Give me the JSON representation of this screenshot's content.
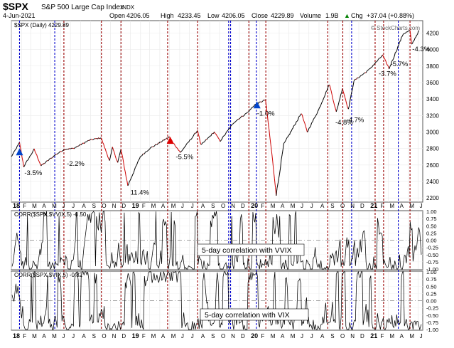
{
  "header": {
    "symbol": "$SPX",
    "name": "S&P 500 Large Cap Index",
    "exchange": "INDX",
    "date": "4-Jun-2021",
    "open_label": "Open",
    "open": "4206.05",
    "high_label": "High",
    "high": "4233.45",
    "low_label": "Low",
    "low": "4206.05",
    "close_label": "Close",
    "close": "4229.89",
    "volume_label": "Volume",
    "volume": "1.9B",
    "chg_label": "Chg",
    "chg": "+37.04 (+0.88%)",
    "chg_arrow": "▲",
    "watermark": "© StockCharts.com",
    "legend": "$SPX (Daily) 4229.89"
  },
  "panel2_legend": "CORR($SPX,$VVIX,5) -0.50",
  "panel3_legend": "CORR($SPX,$VIX,5) -0.82",
  "colors": {
    "price": "#000000",
    "down": "#cc0000",
    "red_line": "#990000",
    "blue_line": "#0000cc",
    "marker_red": "#dd0000",
    "marker_blue": "#0044cc",
    "line_gray": "#888888"
  },
  "chart_data": [
    {
      "type": "line",
      "series": [
        {
          "name": "$SPX (Daily)",
          "x": [
            "2018-01-01",
            "2018-01-26",
            "2018-02-08",
            "2018-03-12",
            "2018-04-02",
            "2018-05-15",
            "2018-06-12",
            "2018-07-10",
            "2018-08-28",
            "2018-10-03",
            "2018-10-29",
            "2018-11-07",
            "2018-11-23",
            "2018-12-03",
            "2018-12-24",
            "2019-01-31",
            "2019-03-01",
            "2019-04-30",
            "2019-06-03",
            "2019-07-26",
            "2019-08-05",
            "2019-09-15",
            "2019-10-03",
            "2019-11-15",
            "2019-12-27",
            "2020-01-17",
            "2020-02-19",
            "2020-03-09",
            "2020-03-23",
            "2020-04-15",
            "2020-06-08",
            "2020-06-26",
            "2020-07-31",
            "2020-09-02",
            "2020-09-23",
            "2020-10-12",
            "2020-10-30",
            "2020-11-16",
            "2020-12-31",
            "2021-02-12",
            "2021-03-04",
            "2021-04-16",
            "2021-05-07",
            "2021-05-12",
            "2021-06-04"
          ],
          "values": [
            2700,
            2870,
            2580,
            2790,
            2590,
            2720,
            2790,
            2800,
            2900,
            2930,
            2650,
            2810,
            2630,
            2790,
            2350,
            2700,
            2800,
            2940,
            2750,
            3020,
            2840,
            3000,
            2890,
            3120,
            3240,
            3330,
            3390,
            2750,
            2240,
            2850,
            3230,
            3000,
            3270,
            3580,
            3240,
            3530,
            3270,
            3620,
            3750,
            3930,
            3770,
            4190,
            4230,
            4060,
            4230
          ]
        }
      ],
      "ylim": [
        2150,
        4350
      ],
      "y_ticks": [
        "4200",
        "4000",
        "3800",
        "3600",
        "3400",
        "3200",
        "3000",
        "2800",
        "2600",
        "2400",
        "2200"
      ],
      "x_ticks": [
        "18",
        "F",
        "M",
        "A",
        "M",
        "J",
        "J",
        "A",
        "S",
        "O",
        "N",
        "D",
        "19",
        "F",
        "M",
        "A",
        "M",
        "J",
        "J",
        "A",
        "S",
        "O",
        "N",
        "D",
        "20",
        "F",
        "M",
        "A",
        "M",
        "J",
        "J",
        "A",
        "S",
        "O",
        "N",
        "D",
        "21",
        "F",
        "M",
        "A",
        "M",
        "J"
      ],
      "annotations": [
        {
          "text": "-3.5%",
          "x": "2018-02-10",
          "y": 2480
        },
        {
          "text": "-2.2%",
          "x": "2018-06-20",
          "y": 2590
        },
        {
          "text": "11.4%",
          "x": "2019-01-01",
          "y": 2240
        },
        {
          "text": "-5.5%",
          "x": "2019-05-20",
          "y": 2670
        },
        {
          "text": "-1.0%",
          "x": "2020-01-24",
          "y": 3200
        },
        {
          "text": "-4.8%",
          "x": "2020-09-20",
          "y": 3090
        },
        {
          "text": "-4.7%",
          "x": "2020-10-24",
          "y": 3120
        },
        {
          "text": "-3.7%",
          "x": "2021-01-31",
          "y": 3680
        },
        {
          "text": "-5.7%",
          "x": "2021-03-08",
          "y": 3800
        },
        {
          "text": "-4.3%",
          "x": "2021-05-14",
          "y": 3980
        }
      ],
      "markers": [
        {
          "shape": "triangle-up",
          "color": "blue",
          "x": "2018-01-26",
          "y": 2760
        },
        {
          "shape": "triangle-up",
          "color": "red",
          "x": "2019-05-03",
          "y": 2900
        },
        {
          "shape": "triangle-up",
          "color": "blue",
          "x": "2020-01-24",
          "y": 3330
        }
      ]
    },
    {
      "type": "line",
      "series": [
        {
          "name": "CORR($SPX,$VVIX,5)"
        }
      ],
      "ylim": [
        -1,
        1
      ],
      "y_ticks": [
        "1.00",
        "0.75",
        "0.50",
        "0.25",
        "0.00",
        "-0.25",
        "-0.50",
        "-0.75",
        "-1.00"
      ],
      "annotation": "5-day correlation with VVIX",
      "last_value": -0.5
    },
    {
      "type": "line",
      "series": [
        {
          "name": "CORR($SPX,$VIX,5)"
        }
      ],
      "ylim": [
        -1,
        1
      ],
      "y_ticks": [
        "1.00",
        "0.75",
        "0.50",
        "0.25",
        "0.00",
        "-0.25",
        "-0.50",
        "-0.75",
        "-1.00"
      ],
      "annotation": "5-day correlation with VIX",
      "last_value": -0.82
    }
  ],
  "signal_lines": {
    "red": [
      "2018-06-11",
      "2018-10-04",
      "2018-12-03",
      "2019-04-25",
      "2019-07-26",
      "2019-12-30",
      "2020-02-20",
      "2020-08-28",
      "2020-10-13",
      "2021-01-20",
      "2021-02-15",
      "2021-05-07"
    ],
    "blue": [
      "2018-01-26",
      "2018-05-14",
      "2019-10-29",
      "2019-11-04",
      "2020-01-22",
      "2020-11-09",
      "2021-04-01"
    ]
  }
}
